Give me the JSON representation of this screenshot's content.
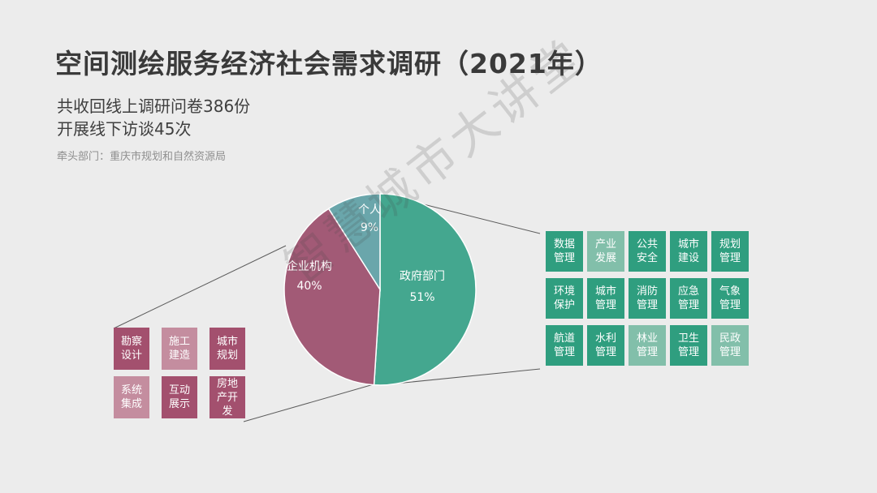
{
  "header": {
    "title": "空间测绘服务经济社会需求调研（2021年）",
    "line1": "共收回线上调研问卷386份",
    "line2": "开展线下访谈45次",
    "lead": "牵头部门：重庆市规划和自然资源局"
  },
  "chart_data": {
    "type": "pie",
    "slices": [
      {
        "label": "政府部门",
        "value": 51,
        "value_label": "51%",
        "color": "#44a78f"
      },
      {
        "label": "企业机构",
        "value": 40,
        "value_label": "40%",
        "color": "#a25a76"
      },
      {
        "label": "个人",
        "value": 9,
        "value_label": "9%",
        "color": "#6aa6ab"
      }
    ]
  },
  "government_tiles": [
    {
      "text": "数据管理",
      "color": "#2f9e7f"
    },
    {
      "text": "产业发展",
      "color": "#82bfaa"
    },
    {
      "text": "公共安全",
      "color": "#2f9e7f"
    },
    {
      "text": "城市建设",
      "color": "#2f9e7f"
    },
    {
      "text": "规划管理",
      "color": "#2f9e7f"
    },
    {
      "text": "环境保护",
      "color": "#2f9e7f"
    },
    {
      "text": "城市管理",
      "color": "#2f9e7f"
    },
    {
      "text": "消防管理",
      "color": "#2f9e7f"
    },
    {
      "text": "应急管理",
      "color": "#2f9e7f"
    },
    {
      "text": "气象管理",
      "color": "#2f9e7f"
    },
    {
      "text": "航道管理",
      "color": "#2f9e7f"
    },
    {
      "text": "水利管理",
      "color": "#2f9e7f"
    },
    {
      "text": "林业管理",
      "color": "#82bfaa"
    },
    {
      "text": "卫生管理",
      "color": "#2f9e7f"
    },
    {
      "text": "民政管理",
      "color": "#82bfaa"
    }
  ],
  "enterprise_tiles": [
    {
      "text": "勘察设计",
      "color": "#a3506e"
    },
    {
      "text": "施工建造",
      "color": "#c48d9f"
    },
    {
      "text": "城市规划",
      "color": "#a3506e"
    },
    {
      "text": "系统集成",
      "color": "#c48d9f"
    },
    {
      "text": "互动展示",
      "color": "#a3506e"
    },
    {
      "text": "房地产开发",
      "color": "#a3506e"
    }
  ],
  "watermark": "智慧城市大讲堂"
}
